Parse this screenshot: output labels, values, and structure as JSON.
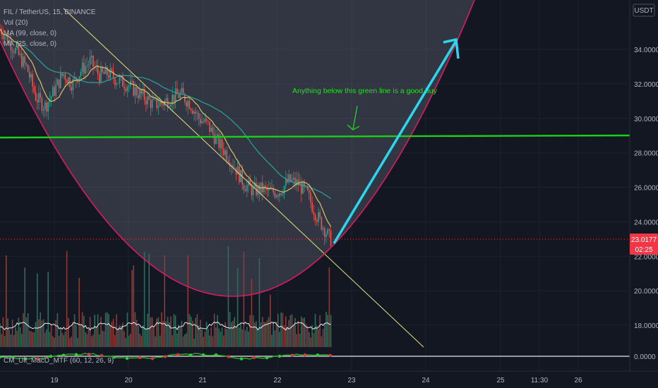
{
  "header": {
    "symbol": "FIL / TetherUS, 15, BINANCE",
    "vol_label": "Vol (20)",
    "ma1_label": "MA (99, close, 0)",
    "ma2_label": "MA (25, close, 0)",
    "currency_button": "USDT"
  },
  "macd_label": "CM_Ult_MacD_MTF (60, 12, 26, 9)",
  "annotation": "Anything below this green line is a good buy",
  "price_tag": {
    "value": "23.0177",
    "countdown": "02:25"
  },
  "colors": {
    "background": "#131722",
    "green_line": "#1bd01b",
    "cyan_arrow": "#29d8f0",
    "cup_curve": "#d81b60",
    "trendline": "#e8e07a",
    "ma25": "#e0c060",
    "ma99": "#26a69a",
    "price_tag": "#f23645"
  },
  "chart_data": {
    "type": "candlestick",
    "y_axis": {
      "ticks": [
        "34.0000",
        "32.0000",
        "30.0000",
        "28.0000",
        "26.0000",
        "24.0000",
        "22.0000",
        "20.0000",
        "18.0000"
      ],
      "range": [
        16.6,
        36.2
      ]
    },
    "x_axis": {
      "ticks": [
        "19",
        "20",
        "21",
        "22",
        "23",
        "24",
        "25",
        "11:30",
        "26"
      ]
    },
    "current_price": 23.0177,
    "horizontal_line": 28.95,
    "arrow_target": 34.6,
    "macd_zero": "0.0000",
    "price_path": [
      [
        0,
        35.2
      ],
      [
        0.1,
        34.5
      ],
      [
        0.2,
        33.7
      ],
      [
        0.3,
        32.9
      ],
      [
        0.4,
        31.2
      ],
      [
        0.5,
        30.7
      ],
      [
        0.6,
        31.6
      ],
      [
        0.7,
        32.6
      ],
      [
        0.8,
        32.0
      ],
      [
        0.9,
        32.8
      ],
      [
        1.0,
        33.3
      ],
      [
        1.1,
        32.5
      ],
      [
        1.2,
        32.6
      ],
      [
        1.3,
        32.2
      ],
      [
        1.4,
        32.0
      ],
      [
        1.5,
        31.6
      ],
      [
        1.6,
        31.2
      ],
      [
        1.7,
        30.8
      ],
      [
        1.8,
        30.9
      ],
      [
        1.9,
        31.2
      ],
      [
        2.0,
        31.4
      ],
      [
        2.1,
        30.9
      ],
      [
        2.2,
        30.0
      ],
      [
        2.3,
        29.6
      ],
      [
        2.4,
        28.7
      ],
      [
        2.5,
        28.0
      ],
      [
        2.6,
        27.2
      ],
      [
        2.7,
        26.2
      ],
      [
        2.8,
        25.8
      ],
      [
        2.9,
        25.9
      ],
      [
        3.0,
        25.7
      ],
      [
        3.1,
        25.8
      ],
      [
        3.2,
        26.4
      ],
      [
        3.3,
        26.2
      ],
      [
        3.4,
        25.6
      ],
      [
        3.5,
        24.4
      ],
      [
        3.6,
        23.5
      ],
      [
        3.65,
        23.0
      ]
    ]
  }
}
